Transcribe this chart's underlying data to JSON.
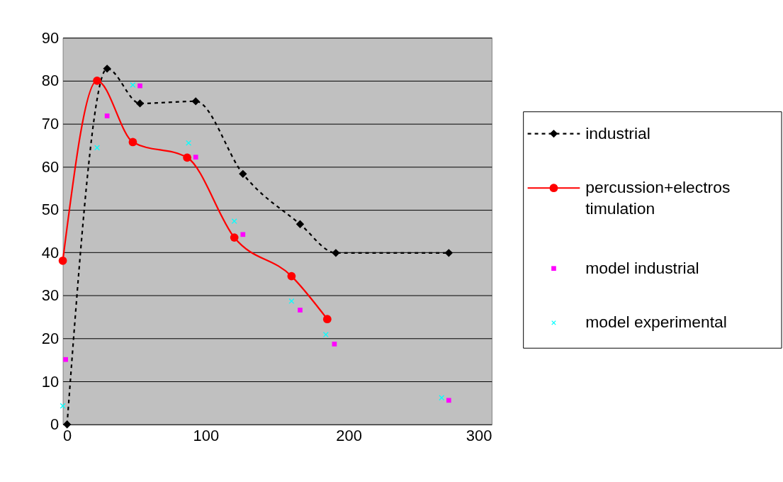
{
  "chart_data": {
    "type": "line",
    "xlim": [
      0,
      300
    ],
    "xticks": [
      0,
      100,
      200,
      300
    ],
    "ylim": [
      0,
      90
    ],
    "yticks": [
      0,
      10,
      20,
      30,
      40,
      50,
      60,
      70,
      80,
      90
    ],
    "grid": "y",
    "legend": "right",
    "series": [
      {
        "name": "industrial",
        "type": "line",
        "color": "#000000",
        "marker": "diamond",
        "line_style": "dashed",
        "x": [
          3,
          31,
          54,
          93,
          126,
          166,
          191,
          270
        ],
        "values": [
          0,
          82.8,
          74.7,
          75.2,
          58.3,
          46.6,
          39.9,
          39.9
        ]
      },
      {
        "name": "percussion+electrostimulation",
        "type": "line",
        "color": "#ff0000",
        "marker": "circle",
        "line_style": "solid",
        "x": [
          0,
          24,
          49,
          87,
          120,
          160,
          185
        ],
        "values": [
          38.1,
          80,
          65.7,
          62.1,
          43.5,
          34.5,
          24.5
        ]
      },
      {
        "name": "model industrial",
        "type": "scatter",
        "color": "#ff00ff",
        "marker": "square",
        "x": [
          2,
          31,
          54,
          93,
          126,
          166,
          190,
          270
        ],
        "values": [
          15.1,
          71.8,
          78.8,
          62.2,
          44.2,
          26.6,
          18.7,
          5.6
        ]
      },
      {
        "name": "model experimental",
        "type": "scatter",
        "color": "#00ffff",
        "marker": "cross",
        "x": [
          0,
          24,
          49,
          88,
          120,
          160,
          184,
          265
        ],
        "values": [
          4.3,
          64.4,
          79,
          65.5,
          47.3,
          28.7,
          20.9,
          6.2
        ]
      }
    ]
  }
}
